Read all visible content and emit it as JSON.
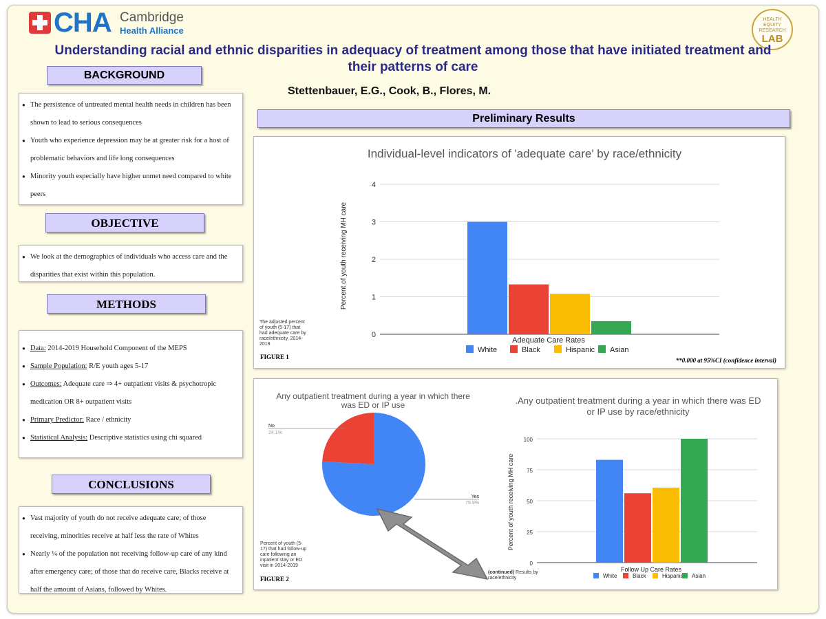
{
  "header": {
    "logo_mark": "CHA",
    "logo_name": "Cambridge",
    "logo_sub": "Health Alliance",
    "lab_line1": "HEALTH",
    "lab_line2": "EQUITY",
    "lab_line3": "RESEARCH",
    "lab_line4": "LAB",
    "title_line1": "Understanding racial and ethnic disparities in adequacy of treatment among those that have initiated treatment and",
    "title_line2": "their patterns of care",
    "authors": "Stettenbauer, E.G., Cook, B., Flores, M."
  },
  "sections": {
    "background": {
      "heading": "BACKGROUND",
      "bullets": [
        "The persistence of untreated mental health needs in children has been shown to lead to serious consequences",
        "Youth who experience depression may be at greater risk for a host of problematic behaviors and life long consequences",
        "Minority youth especially have higher unmet need compared to white peers"
      ]
    },
    "objective": {
      "heading": "OBJECTIVE",
      "bullets": [
        "We look at the demographics of individuals who access care and the disparities that exist within this population."
      ]
    },
    "methods": {
      "heading": "METHODS",
      "items": [
        {
          "label": "Data:",
          "text": " 2014-2019 Household Component of the MEPS"
        },
        {
          "label": "Sample Population:",
          "text": "  R/E youth ages 5-17"
        },
        {
          "label": "Outcomes:",
          "text": " Adequate care ⇒ 4+ outpatient visits &  psychotropic medication OR  8+ outpatient visits"
        },
        {
          "label": "Primary Predictor:",
          "text": " Race / ethnicity"
        },
        {
          "label": "Statistical Analysis:",
          "text": " Descriptive statistics using chi squared"
        }
      ]
    },
    "conclusions": {
      "heading": "CONCLUSIONS",
      "bullets": [
        "Vast majority of youth do not receive adequate care; of those receiving, minorities receive at half less the rate of Whites",
        "Nearly ¼ of the population not receiving follow-up care of any kind after emergency care; of those that do receive care, Blacks receive at half the amount of Asians, followed by Whites."
      ]
    },
    "results_heading": "Preliminary Results"
  },
  "figure1": {
    "caption": "The adjusted percent of youth (5-17) that had adequate care by race/ethnicity, 2014-2019",
    "label": "FIGURE 1",
    "note": "**0.000 at 95%CI (confidence interval)"
  },
  "figure2": {
    "caption": "Percent of youth (5-17) that had follow-up care following an inpatient stay or ED visit in 2014-2019",
    "label": "FIGURE 2",
    "continued_bold": "(continued)",
    "continued_text": " Results by race/ethnicity"
  },
  "colors": {
    "white": "#4285f4",
    "black": "#ea4335",
    "hispanic": "#fbbc04",
    "asian": "#34a853",
    "accent": "#2a2a8a"
  },
  "chart_data": [
    {
      "type": "bar",
      "title": "Individual-level indicators of 'adequate care' by race/ethnicity",
      "xlabel": "Adequate Care Rates",
      "ylabel": "Percent of youth receiving MH care",
      "ylim": [
        0,
        4
      ],
      "yticks": [
        0,
        1,
        2,
        3,
        4
      ],
      "series": [
        {
          "name": "White",
          "values": [
            3.0
          ]
        },
        {
          "name": "Black",
          "values": [
            1.33
          ]
        },
        {
          "name": "Hispanic",
          "values": [
            1.08
          ]
        },
        {
          "name": "Asian",
          "values": [
            0.35
          ]
        }
      ],
      "legend": "bottom"
    },
    {
      "type": "pie",
      "title": "Any outpatient treatment during a year in which there was ED or IP use",
      "slices": [
        {
          "label": "Yes",
          "value": 75.9,
          "display": "75.9%"
        },
        {
          "label": "No",
          "value": 24.1,
          "display": "24.1%"
        }
      ]
    },
    {
      "type": "bar",
      "title": ".Any outpatient treatment during a year in which there was ED or IP use by race/ethnicity",
      "xlabel": "Follow Up Care Rates",
      "ylabel": "Percent of youth receiving MH care",
      "ylim": [
        0,
        100
      ],
      "yticks": [
        0,
        25,
        50,
        75,
        100
      ],
      "series": [
        {
          "name": "White",
          "values": [
            83
          ]
        },
        {
          "name": "Black",
          "values": [
            56
          ]
        },
        {
          "name": "Hispanic",
          "values": [
            60.5
          ]
        },
        {
          "name": "Asian",
          "values": [
            100
          ]
        }
      ],
      "legend": "bottom"
    }
  ]
}
